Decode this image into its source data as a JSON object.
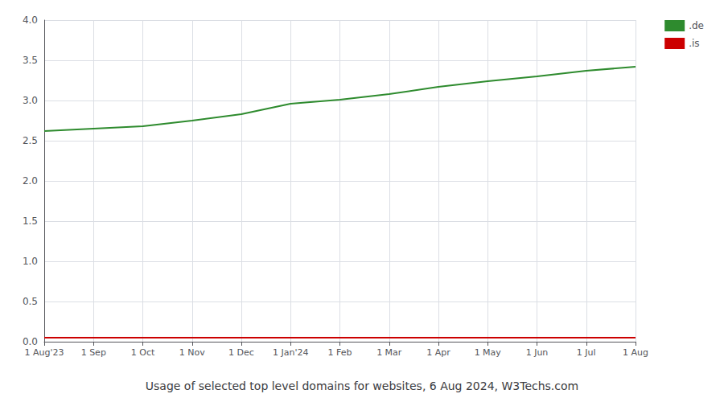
{
  "chart_data": {
    "type": "line",
    "title": "Usage of selected top level domains for websites, 6 Aug 2024, W3Techs.com",
    "categories": [
      "1 Aug'23",
      "1 Sep",
      "1 Oct",
      "1 Nov",
      "1 Dec",
      "1 Jan'24",
      "1 Feb",
      "1 Mar",
      "1 Apr",
      "1 May",
      "1 Jun",
      "1 Jul",
      "1 Aug"
    ],
    "series": [
      {
        "name": ".de",
        "color": "#2e8b2e",
        "values": [
          2.62,
          2.65,
          2.68,
          2.75,
          2.83,
          2.96,
          3.01,
          3.08,
          3.17,
          3.24,
          3.3,
          3.37,
          3.42
        ]
      },
      {
        "name": ".is",
        "color": "#cc0000",
        "values": [
          0.05,
          0.05,
          0.05,
          0.05,
          0.05,
          0.05,
          0.05,
          0.05,
          0.05,
          0.05,
          0.05,
          0.05,
          0.05
        ]
      }
    ],
    "ylim": [
      0,
      4
    ],
    "yticks": [
      {
        "value": 0,
        "label": "0.0"
      },
      {
        "value": 0.5,
        "label": "0.5"
      },
      {
        "value": 1,
        "label": "1.0"
      },
      {
        "value": 1.5,
        "label": "1.5"
      },
      {
        "value": 2,
        "label": "2.0"
      },
      {
        "value": 2.5,
        "label": "2.5"
      },
      {
        "value": 3,
        "label": "3.0"
      },
      {
        "value": 3.5,
        "label": "3.5"
      },
      {
        "value": 4,
        "label": "4.0"
      }
    ],
    "grid": true,
    "legend": "right"
  }
}
